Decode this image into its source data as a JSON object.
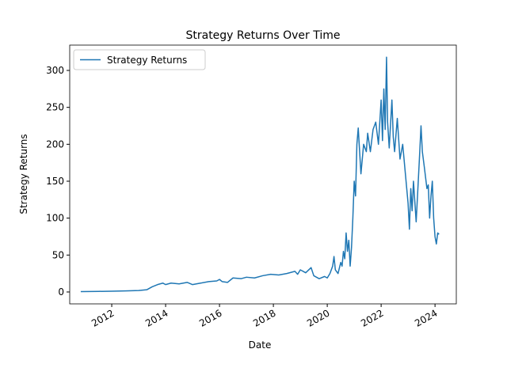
{
  "chart_data": {
    "type": "line",
    "title": "Strategy Returns Over Time",
    "x_label": "Date",
    "y_label": "Strategy Returns",
    "x": [
      2010.85,
      2011.5,
      2012,
      2012.5,
      2013,
      2013.3,
      2013.5,
      2013.7,
      2013.9,
      2014.0,
      2014.2,
      2014.5,
      2014.8,
      2015.0,
      2015.3,
      2015.6,
      2015.9,
      2016.0,
      2016.1,
      2016.3,
      2016.5,
      2016.8,
      2017.0,
      2017.3,
      2017.6,
      2017.9,
      2018.2,
      2018.5,
      2018.8,
      2018.9,
      2019.0,
      2019.2,
      2019.4,
      2019.5,
      2019.7,
      2019.9,
      2020.0,
      2020.1,
      2020.2,
      2020.25,
      2020.3,
      2020.4,
      2020.5,
      2020.55,
      2020.6,
      2020.65,
      2020.7,
      2020.75,
      2020.8,
      2020.85,
      2020.9,
      2020.95,
      2021.0,
      2021.05,
      2021.1,
      2021.15,
      2021.25,
      2021.3,
      2021.35,
      2021.45,
      2021.5,
      2021.6,
      2021.7,
      2021.8,
      2021.9,
      2022.0,
      2022.05,
      2022.1,
      2022.15,
      2022.2,
      2022.24,
      2022.3,
      2022.4,
      2022.45,
      2022.5,
      2022.6,
      2022.7,
      2022.8,
      2022.9,
      2023.0,
      2023.05,
      2023.1,
      2023.15,
      2023.2,
      2023.3,
      2023.35,
      2023.42,
      2023.48,
      2023.53,
      2023.6,
      2023.7,
      2023.75,
      2023.8,
      2023.85,
      2023.9,
      2023.95,
      2024.0,
      2024.05,
      2024.1,
      2024.15
    ],
    "series": [
      {
        "name": "Strategy Returns",
        "color": "#1f77b4",
        "values": [
          0.5,
          0.8,
          1,
          1.5,
          2,
          3,
          7,
          10,
          12,
          10,
          12,
          11,
          13,
          10,
          12,
          14,
          15,
          17,
          14,
          13,
          19,
          18,
          20,
          19,
          22,
          24,
          23,
          25,
          28,
          24,
          30,
          26,
          33,
          22,
          18,
          21,
          19,
          25,
          35,
          48,
          30,
          25,
          40,
          35,
          55,
          45,
          80,
          55,
          70,
          35,
          60,
          100,
          150,
          130,
          200,
          222,
          160,
          180,
          200,
          190,
          215,
          190,
          220,
          230,
          200,
          260,
          205,
          275,
          220,
          318,
          230,
          195,
          260,
          210,
          190,
          235,
          180,
          200,
          160,
          120,
          85,
          140,
          110,
          150,
          95,
          130,
          180,
          225,
          190,
          170,
          140,
          145,
          100,
          130,
          150,
          100,
          75,
          65,
          80,
          78
        ]
      }
    ],
    "xlim": [
      2010.44,
      2024.79
    ],
    "ylim": [
      -16.1,
      334.3
    ],
    "xticks": [
      2012,
      2014,
      2016,
      2018,
      2020,
      2022,
      2024
    ],
    "yticks": [
      0,
      50,
      100,
      150,
      200,
      250,
      300
    ],
    "legend": "upper left"
  }
}
